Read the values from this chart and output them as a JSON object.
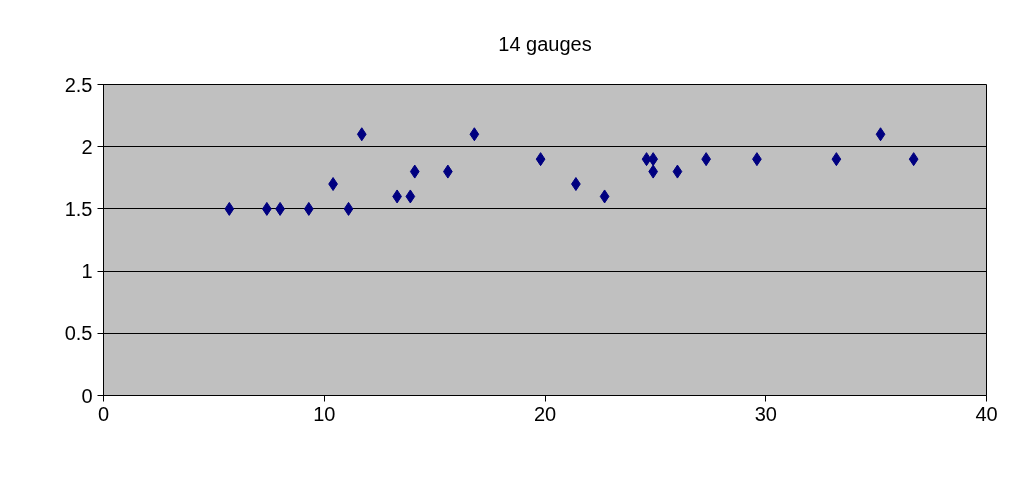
{
  "chart_data": {
    "type": "scatter",
    "title": "14 gauges",
    "x": [
      5.7,
      7.4,
      8.0,
      9.3,
      10.4,
      11.1,
      11.7,
      13.3,
      13.9,
      14.1,
      15.6,
      16.8,
      19.8,
      21.4,
      22.7,
      24.6,
      24.9,
      24.9,
      26.0,
      27.3,
      29.6,
      33.2,
      35.2,
      36.7
    ],
    "series": [
      {
        "color": "#000080",
        "values": [
          1.5,
          1.5,
          1.5,
          1.5,
          1.7,
          1.5,
          2.1,
          1.6,
          1.6,
          1.8,
          1.8,
          2.1,
          1.9,
          1.7,
          1.6,
          1.9,
          1.9,
          1.8,
          1.8,
          1.9,
          1.9,
          1.9,
          2.1,
          1.9
        ]
      }
    ],
    "xlim": [
      0,
      40
    ],
    "xticks": [
      0,
      10,
      20,
      30,
      40
    ],
    "ylim": [
      0,
      2.5
    ],
    "yticks": [
      0,
      0.5,
      1,
      1.5,
      2,
      2.5
    ],
    "grid": "y",
    "marker": "diamond"
  }
}
